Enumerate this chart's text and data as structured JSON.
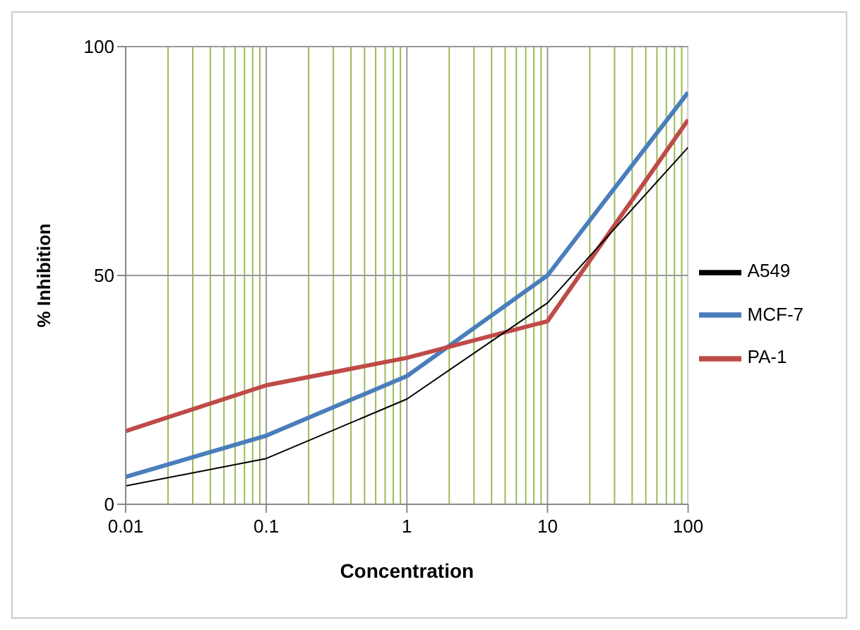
{
  "chart_data": {
    "type": "line",
    "xlabel": "Concentration",
    "ylabel": "% Inhibition",
    "log": "x",
    "grid": true,
    "legend": "right",
    "marker": "none",
    "line_style": "solid",
    "x": [
      0.01,
      0.1,
      1,
      10,
      100
    ],
    "xlim": [
      0.01,
      100
    ],
    "xticks": [
      0.01,
      {
        "value": 0.02,
        "label": null
      },
      {
        "value": 0.03,
        "label": null
      },
      {
        "value": 0.04,
        "label": null
      },
      {
        "value": 0.05,
        "label": null
      },
      {
        "value": 0.06,
        "label": null
      },
      {
        "value": 0.07,
        "label": null
      },
      {
        "value": 0.08,
        "label": null
      },
      {
        "value": 0.09,
        "label": null
      },
      0.1,
      {
        "value": 0.2,
        "label": null
      },
      {
        "value": 0.3,
        "label": null
      },
      {
        "value": 0.4,
        "label": null
      },
      {
        "value": 0.5,
        "label": null
      },
      {
        "value": 0.6,
        "label": null
      },
      {
        "value": 0.7,
        "label": null
      },
      {
        "value": 0.8,
        "label": null
      },
      {
        "value": 0.9,
        "label": null
      },
      1,
      {
        "value": 2,
        "label": null
      },
      {
        "value": 3,
        "label": null
      },
      {
        "value": 4,
        "label": null
      },
      {
        "value": 5,
        "label": null
      },
      {
        "value": 6,
        "label": null
      },
      {
        "value": 7,
        "label": null
      },
      {
        "value": 8,
        "label": null
      },
      {
        "value": 9,
        "label": null
      },
      10,
      {
        "value": 20,
        "label": null
      },
      {
        "value": 30,
        "label": null
      },
      {
        "value": 40,
        "label": null
      },
      {
        "value": 50,
        "label": null
      },
      {
        "value": 60,
        "label": null
      },
      {
        "value": 70,
        "label": null
      },
      {
        "value": 80,
        "label": null
      },
      {
        "value": 90,
        "label": null
      },
      100
    ],
    "ylim": [
      0,
      100
    ],
    "yticks": [
      0,
      50,
      100
    ],
    "series": [
      {
        "name": "MCF-7",
        "color": "#4a7ebb",
        "values": [
          6,
          15,
          28,
          50,
          90
        ]
      },
      {
        "name": "PA-1",
        "color": "#be4b48",
        "values": [
          16,
          26,
          32,
          40,
          84
        ]
      },
      {
        "name": "A549",
        "color": "#000000",
        "values": [
          4,
          10,
          23,
          44,
          78
        ]
      }
    ]
  }
}
